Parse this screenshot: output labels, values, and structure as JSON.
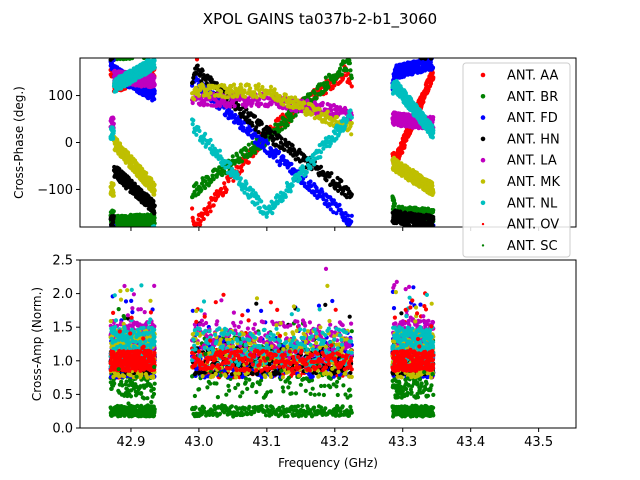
{
  "figure": {
    "title": "XPOL GAINS ta037b-2-b1_3060"
  },
  "chart_data": [
    {
      "type": "scatter",
      "panel": "top",
      "ylabel": "Cross-Phase (deg.)",
      "xlabel": "",
      "xlim": [
        42.825,
        43.555
      ],
      "ylim": [
        -180,
        180
      ],
      "x_ticks": [
        42.9,
        43.0,
        43.1,
        43.2,
        43.3,
        43.4,
        43.5
      ],
      "x_tick_labels_visible": false,
      "y_ticks": [
        -100,
        0,
        100
      ],
      "y_tick_labels": [
        "−100",
        "0",
        "100"
      ],
      "frequency_bands_ghz": [
        [
          42.87,
          42.935
        ],
        [
          42.99,
          43.225
        ],
        [
          43.285,
          43.345
        ]
      ],
      "series": [
        {
          "name": "ANT. AA",
          "color": "#ff0000",
          "marker": "dot",
          "phase_trend": [
            [
              42.875,
              120
            ],
            [
              42.935,
              150
            ],
            [
              42.995,
              -175
            ],
            [
              43.1,
              20
            ],
            [
              43.215,
              150
            ],
            [
              43.29,
              -40
            ],
            [
              43.345,
              150
            ]
          ]
        },
        {
          "name": "ANT. BR",
          "color": "#008000",
          "marker": "dot",
          "phase_trend": [
            [
              42.875,
              -170
            ],
            [
              42.935,
              -165
            ],
            [
              42.995,
              -100
            ],
            [
              43.1,
              10
            ],
            [
              43.22,
              170
            ],
            [
              43.29,
              -150
            ],
            [
              43.345,
              -155
            ]
          ]
        },
        {
          "name": "ANT. FD",
          "color": "#0000ff",
          "marker": "dot",
          "phase_trend": [
            [
              42.875,
              150
            ],
            [
              42.935,
              100
            ],
            [
              42.995,
              130
            ],
            [
              43.1,
              -10
            ],
            [
              43.225,
              -170
            ],
            [
              43.29,
              150
            ],
            [
              43.345,
              170
            ]
          ]
        },
        {
          "name": "ANT. HN",
          "color": "#000000",
          "marker": "dot",
          "phase_trend": [
            [
              42.875,
              -60
            ],
            [
              42.935,
              -140
            ],
            [
              42.995,
              155
            ],
            [
              43.1,
              20
            ],
            [
              43.225,
              -110
            ],
            [
              43.29,
              -160
            ],
            [
              43.345,
              -170
            ]
          ]
        },
        {
          "name": "ANT. LA",
          "color": "#bf00bf",
          "marker": "dot",
          "phase_trend": [
            [
              42.875,
              140
            ],
            [
              42.935,
              130
            ],
            [
              42.995,
              90
            ],
            [
              43.1,
              90
            ],
            [
              43.225,
              60
            ],
            [
              43.29,
              50
            ],
            [
              43.345,
              40
            ]
          ]
        },
        {
          "name": "ANT. MK",
          "color": "#bfbf00",
          "marker": "dot",
          "phase_trend": [
            [
              42.875,
              0
            ],
            [
              42.935,
              -100
            ],
            [
              42.995,
              110
            ],
            [
              43.1,
              110
            ],
            [
              43.225,
              30
            ],
            [
              43.29,
              -50
            ],
            [
              43.345,
              -100
            ]
          ]
        },
        {
          "name": "ANT. NL",
          "color": "#00bfbf",
          "marker": "dot",
          "phase_trend": [
            [
              42.875,
              120
            ],
            [
              42.935,
              170
            ],
            [
              42.995,
              30
            ],
            [
              43.1,
              -150
            ],
            [
              43.225,
              60
            ],
            [
              43.29,
              120
            ],
            [
              43.345,
              20
            ]
          ]
        },
        {
          "name": "ANT. OV",
          "color": "#ff0000",
          "marker": "small-dot"
        },
        {
          "name": "ANT. SC",
          "color": "#008000",
          "marker": "small-dot"
        }
      ]
    },
    {
      "type": "scatter",
      "panel": "bottom",
      "ylabel": "Cross-Amp (Norm.)",
      "xlabel": "Frequency (GHz)",
      "xlim": [
        42.825,
        43.555
      ],
      "ylim": [
        0.0,
        2.5
      ],
      "x_ticks": [
        42.9,
        43.0,
        43.1,
        43.2,
        43.3,
        43.4,
        43.5
      ],
      "x_tick_labels": [
        "42.9",
        "43.0",
        "43.1",
        "43.2",
        "43.3",
        "43.4",
        "43.5"
      ],
      "y_ticks": [
        0.0,
        0.5,
        1.0,
        1.5,
        2.0,
        2.5
      ],
      "y_tick_labels": [
        "0.0",
        "0.5",
        "1.0",
        "1.5",
        "2.0",
        "2.5"
      ],
      "frequency_bands_ghz": [
        [
          42.87,
          42.935
        ],
        [
          42.99,
          43.225
        ],
        [
          43.285,
          43.345
        ]
      ],
      "series": [
        {
          "name": "ANT. AA",
          "color": "#ff0000",
          "center": 1.0,
          "spread": 0.25
        },
        {
          "name": "ANT. BR",
          "color": "#008000",
          "center": 0.9,
          "spread": 0.45
        },
        {
          "name": "ANT. FD",
          "color": "#0000ff",
          "center": 1.05,
          "spread": 0.3
        },
        {
          "name": "ANT. HN",
          "color": "#000000",
          "center": 1.0,
          "spread": 0.2
        },
        {
          "name": "ANT. LA",
          "color": "#bf00bf",
          "center": 1.3,
          "spread": 0.3
        },
        {
          "name": "ANT. MK",
          "color": "#bfbf00",
          "center": 1.1,
          "spread": 0.35
        },
        {
          "name": "ANT. NL",
          "color": "#00bfbf",
          "center": 1.2,
          "spread": 0.3
        },
        {
          "name": "ANT. OV",
          "color": "#ff0000",
          "center": 1.0,
          "spread": 0.15
        },
        {
          "name": "ANT. SC",
          "color": "#008000",
          "center": 0.25,
          "spread": 0.08
        }
      ]
    }
  ],
  "legend": {
    "placement": "top-right",
    "entries": [
      "ANT. AA",
      "ANT. BR",
      "ANT. FD",
      "ANT. HN",
      "ANT. LA",
      "ANT. MK",
      "ANT. NL",
      "ANT. OV",
      "ANT. SC"
    ]
  }
}
